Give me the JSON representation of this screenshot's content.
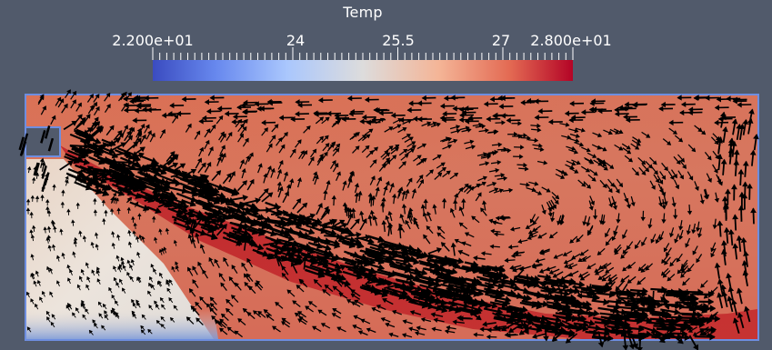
{
  "legend": {
    "title": "Temp",
    "labels": [
      "2.200e+01",
      "24",
      "25.5",
      "27",
      "2.800e+01"
    ],
    "min": 22,
    "max": 28,
    "colors": {
      "low": "#3b4cc0",
      "mid": "#dddddd",
      "high": "#b40426"
    }
  },
  "background": "#515a6b"
}
